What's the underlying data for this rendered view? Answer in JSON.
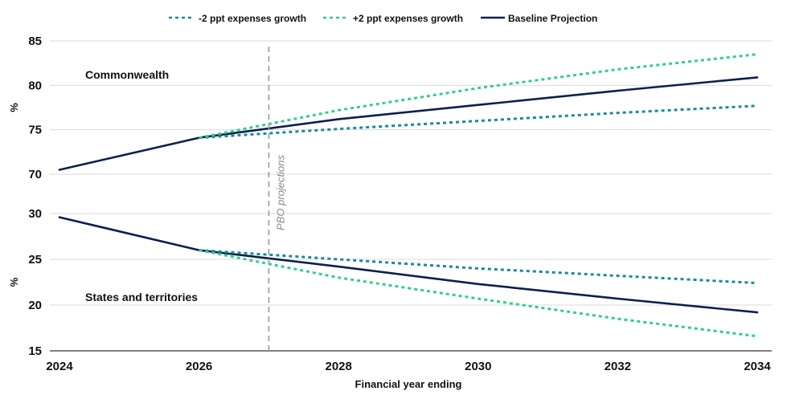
{
  "chart_data": {
    "type": "line",
    "xlabel": "Financial year ending",
    "x_ticks": [
      "2024",
      "2026",
      "2028",
      "2030",
      "2032",
      "2034"
    ],
    "legend": {
      "placement": "top",
      "entries": [
        {
          "label": "-2 ppt expenses growth",
          "color": "#1a8a9a",
          "dash": true
        },
        {
          "label": "+2 ppt expenses growth",
          "color": "#2ecf8c",
          "dash": true
        },
        {
          "label": "Baseline Projection",
          "color": "#0d1f4e",
          "dash": false
        }
      ]
    },
    "annotation": {
      "label": "PBO projections",
      "x": 2027
    },
    "panels": [
      {
        "label": "Commonwealth",
        "ylabel": "%",
        "ylim": [
          70,
          85
        ],
        "yticks": [
          "70",
          "75",
          "80",
          "85"
        ],
        "series": [
          {
            "name": "Baseline Projection",
            "x": [
              2024,
              2026,
              2028,
              2030,
              2032,
              2034
            ],
            "values": [
              70.5,
              74.1,
              76.2,
              77.8,
              79.4,
              80.9
            ]
          },
          {
            "name": "-2 ppt expenses growth",
            "x": [
              2026,
              2028,
              2030,
              2032,
              2034
            ],
            "values": [
              74.1,
              75.1,
              76.0,
              76.9,
              77.7
            ]
          },
          {
            "name": "+2 ppt expenses growth",
            "x": [
              2026,
              2028,
              2030,
              2032,
              2034
            ],
            "values": [
              74.1,
              77.2,
              79.7,
              81.8,
              83.5
            ]
          }
        ]
      },
      {
        "label": "States and territories",
        "ylabel": "%",
        "ylim": [
          15,
          30
        ],
        "yticks": [
          "15",
          "20",
          "25",
          "30"
        ],
        "series": [
          {
            "name": "Baseline Projection",
            "x": [
              2024,
              2026,
              2028,
              2030,
              2032,
              2034
            ],
            "values": [
              29.6,
              26.0,
              24.2,
              22.3,
              20.7,
              19.2
            ]
          },
          {
            "name": "-2 ppt expenses growth",
            "x": [
              2026,
              2028,
              2030,
              2032,
              2034
            ],
            "values": [
              26.0,
              25.0,
              24.0,
              23.2,
              22.4
            ]
          },
          {
            "name": "+2 ppt expenses growth",
            "x": [
              2026,
              2028,
              2030,
              2032,
              2034
            ],
            "values": [
              26.0,
              23.0,
              20.7,
              18.5,
              16.6
            ]
          }
        ]
      }
    ]
  }
}
